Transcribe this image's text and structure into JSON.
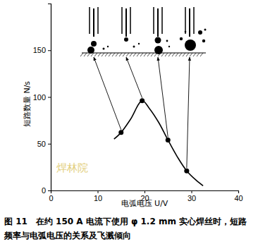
{
  "chart_data": {
    "type": "line",
    "title": [
      "图 11　在约 150 A 电流下使用 φ 1.2 mm 实心焊丝时，短路",
      "频率与电弧电压的关系及飞溅倾向"
    ],
    "x_label": "电弧电压 U/V",
    "y_label": "短路数量 N/s",
    "watermark": "焊林院",
    "xlim": [
      0,
      40
    ],
    "xticks": [
      0,
      10,
      20,
      30,
      40
    ],
    "ylim": [
      0,
      200
    ],
    "yticks": [
      0,
      50,
      100,
      150
    ],
    "grid": false,
    "series": [
      {
        "type": "line",
        "color": "#000000",
        "line_style": "solid",
        "x": [
          13.5,
          15,
          17,
          19.5,
          21,
          23,
          25,
          27,
          29,
          31,
          32.5
        ],
        "values": [
          55,
          62,
          76,
          96,
          88,
          73,
          54,
          36,
          21,
          11,
          5
        ]
      },
      {
        "type": "scatter",
        "color": "#000000",
        "marker": "circle",
        "x": [
          15,
          19.5,
          25,
          29
        ],
        "values": [
          62,
          96,
          54,
          21
        ]
      }
    ]
  }
}
